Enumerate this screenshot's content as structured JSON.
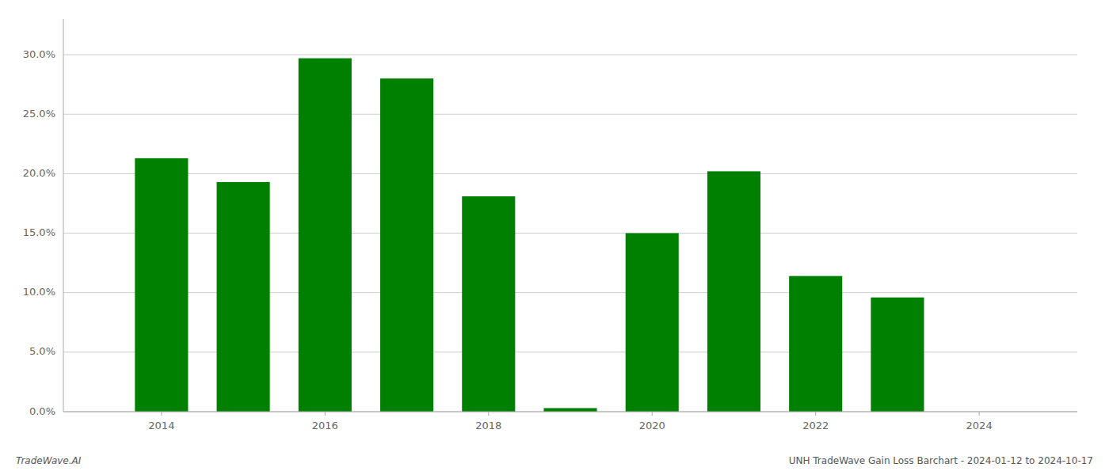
{
  "chart_data": {
    "type": "bar",
    "x": [
      2014,
      2015,
      2016,
      2017,
      2018,
      2019,
      2020,
      2021,
      2022,
      2023
    ],
    "values": [
      0.213,
      0.193,
      0.297,
      0.28,
      0.181,
      0.003,
      0.15,
      0.202,
      0.114,
      0.096
    ],
    "color": "#008000",
    "xlim": [
      2012.8,
      2025.2
    ],
    "xticks": [
      2014,
      2016,
      2018,
      2020,
      2022,
      2024
    ],
    "ylim": [
      0,
      0.33
    ],
    "yticks": [
      {
        "value": 0.0,
        "label": "0.0%"
      },
      {
        "value": 0.05,
        "label": "5.0%"
      },
      {
        "value": 0.1,
        "label": "10.0%"
      },
      {
        "value": 0.15,
        "label": "15.0%"
      },
      {
        "value": 0.2,
        "label": "20.0%"
      },
      {
        "value": 0.25,
        "label": "25.0%"
      },
      {
        "value": 0.3,
        "label": "30.0%"
      }
    ],
    "grid": true,
    "annotations": [
      "TradeWave.AI",
      "UNH TradeWave Gain Loss Barchart - 2024-01-12 to 2024-10-17"
    ]
  }
}
